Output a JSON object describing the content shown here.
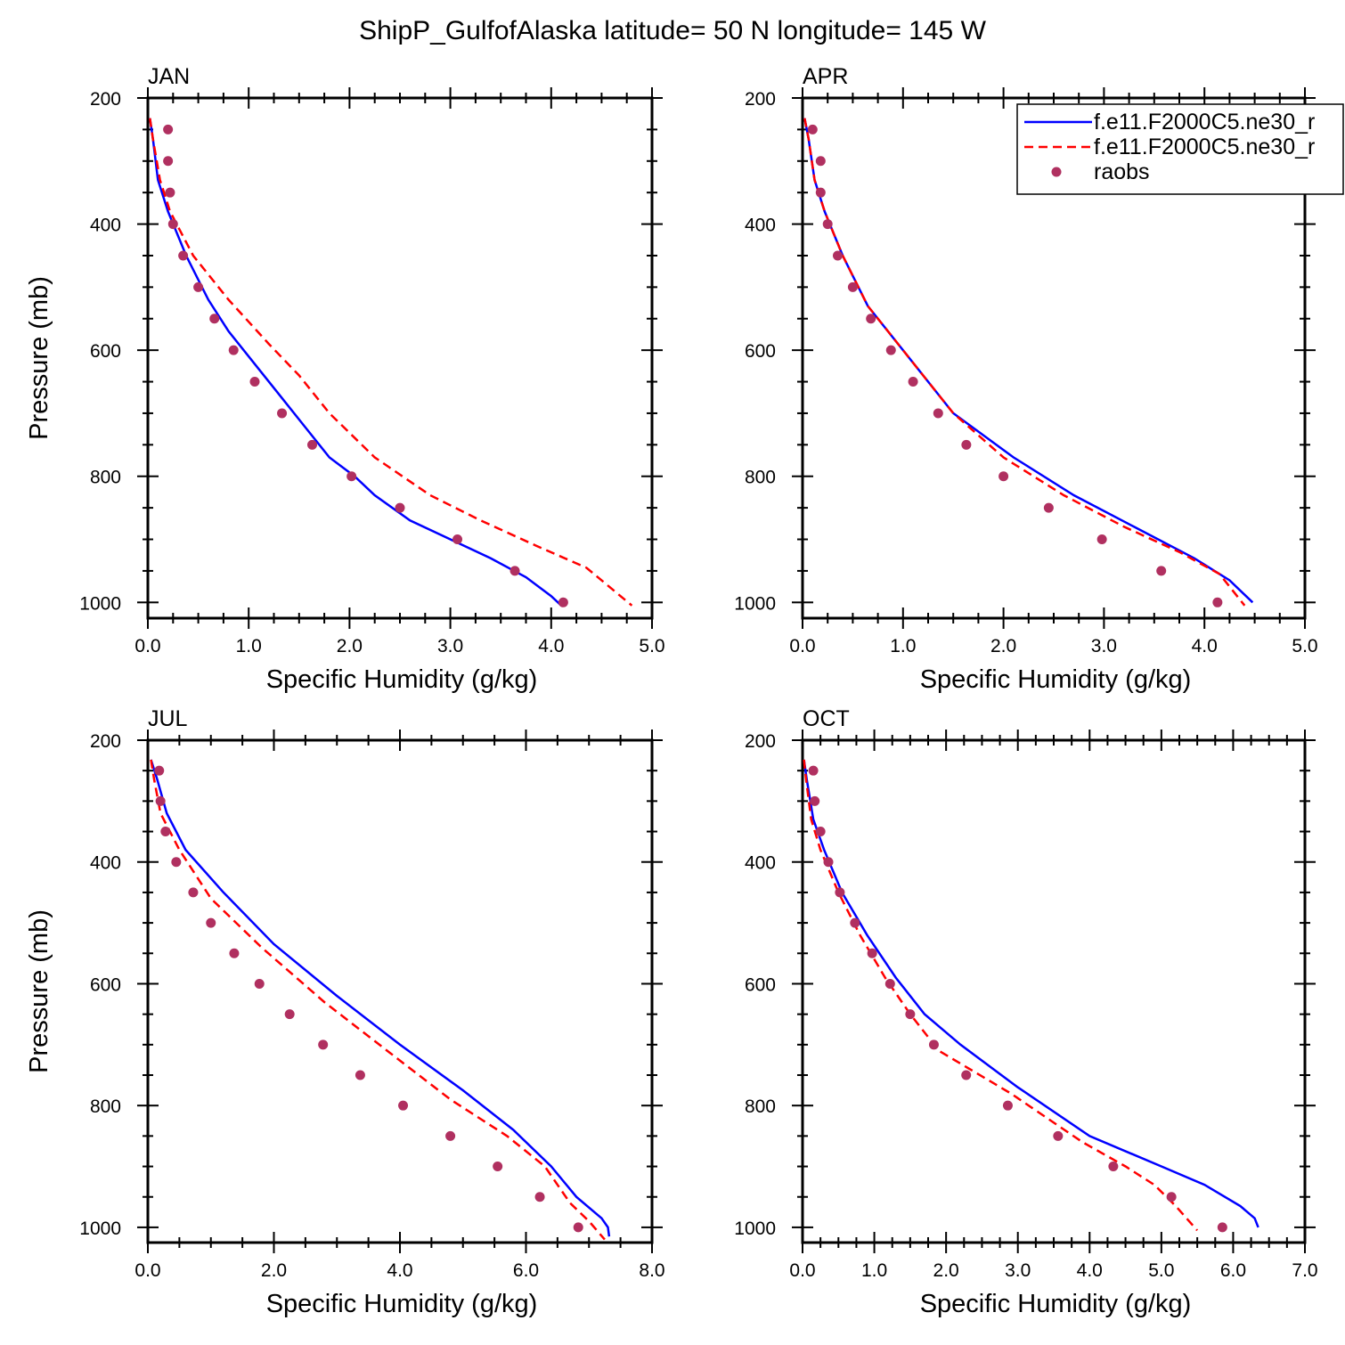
{
  "figure": {
    "title": "ShipP_GulfofAlaska  latitude= 50 N longitude= 145 W"
  },
  "legend": {
    "entries": [
      {
        "label": "f.e11.F2000C5.ne30_r",
        "color": "#0000ff",
        "style": "solid"
      },
      {
        "label": "f.e11.F2000C5.ne30_r",
        "color": "#ff0000",
        "style": "dashed"
      },
      {
        "label": "raobs",
        "color": "#b03060",
        "style": "marker"
      }
    ]
  },
  "chart_data": [
    {
      "type": "line",
      "title": "JAN",
      "xlabel": "Specific Humidity (g/kg)",
      "ylabel": "Pressure (mb)",
      "xlim": [
        0,
        5
      ],
      "ylim": [
        1025,
        200
      ],
      "xticks": [
        "0.0",
        "1.0",
        "2.0",
        "3.0",
        "4.0",
        "5.0"
      ],
      "yticks": [
        "200",
        "400",
        "600",
        "800",
        "1000"
      ],
      "series": [
        {
          "style": "solid",
          "color": "#0000ff",
          "points": [
            [
              0.02,
              232
            ],
            [
              0.05,
              265
            ],
            [
              0.1,
              330
            ],
            [
              0.2,
              380
            ],
            [
              0.38,
              450
            ],
            [
              0.6,
              520
            ],
            [
              0.8,
              570
            ],
            [
              1.05,
              620
            ],
            [
              1.3,
              670
            ],
            [
              1.55,
              720
            ],
            [
              1.8,
              770
            ],
            [
              2.05,
              800
            ],
            [
              2.25,
              830
            ],
            [
              2.6,
              870
            ],
            [
              3.0,
              900
            ],
            [
              3.4,
              930
            ],
            [
              3.75,
              960
            ],
            [
              4.0,
              990
            ],
            [
              4.1,
              1005
            ]
          ]
        },
        {
          "style": "dashed",
          "color": "#ff0000",
          "points": [
            [
              0.02,
              232
            ],
            [
              0.05,
              265
            ],
            [
              0.12,
              330
            ],
            [
              0.22,
              380
            ],
            [
              0.45,
              450
            ],
            [
              0.8,
              520
            ],
            [
              1.2,
              590
            ],
            [
              1.5,
              640
            ],
            [
              1.8,
              700
            ],
            [
              2.25,
              770
            ],
            [
              2.8,
              830
            ],
            [
              3.3,
              870
            ],
            [
              3.85,
              910
            ],
            [
              4.35,
              945
            ],
            [
              4.8,
              1005
            ]
          ]
        },
        {
          "style": "marker",
          "color": "#b03060",
          "points": [
            [
              0.2,
              250
            ],
            [
              0.2,
              300
            ],
            [
              0.22,
              350
            ],
            [
              0.25,
              400
            ],
            [
              0.35,
              450
            ],
            [
              0.5,
              500
            ],
            [
              0.66,
              550
            ],
            [
              0.85,
              600
            ],
            [
              1.06,
              650
            ],
            [
              1.33,
              700
            ],
            [
              1.63,
              750
            ],
            [
              2.02,
              800
            ],
            [
              2.5,
              850
            ],
            [
              3.07,
              900
            ],
            [
              3.64,
              950
            ],
            [
              4.12,
              1000
            ]
          ]
        }
      ]
    },
    {
      "type": "line",
      "title": "APR",
      "xlabel": "Specific Humidity (g/kg)",
      "ylabel": "",
      "xlim": [
        0,
        5
      ],
      "ylim": [
        1025,
        200
      ],
      "xticks": [
        "0.0",
        "1.0",
        "2.0",
        "3.0",
        "4.0",
        "5.0"
      ],
      "yticks": [
        "200",
        "400",
        "600",
        "800",
        "1000"
      ],
      "series": [
        {
          "style": "solid",
          "color": "#0000ff",
          "points": [
            [
              0.02,
              232
            ],
            [
              0.06,
              265
            ],
            [
              0.12,
              330
            ],
            [
              0.22,
              380
            ],
            [
              0.4,
              450
            ],
            [
              0.65,
              530
            ],
            [
              0.95,
              590
            ],
            [
              1.2,
              640
            ],
            [
              1.5,
              700
            ],
            [
              2.1,
              770
            ],
            [
              2.7,
              830
            ],
            [
              3.3,
              880
            ],
            [
              3.9,
              930
            ],
            [
              4.25,
              965
            ],
            [
              4.48,
              1000
            ]
          ]
        },
        {
          "style": "dashed",
          "color": "#ff0000",
          "points": [
            [
              0.02,
              232
            ],
            [
              0.06,
              265
            ],
            [
              0.12,
              330
            ],
            [
              0.22,
              380
            ],
            [
              0.4,
              450
            ],
            [
              0.65,
              530
            ],
            [
              0.95,
              590
            ],
            [
              1.2,
              640
            ],
            [
              1.5,
              700
            ],
            [
              2.0,
              770
            ],
            [
              2.6,
              830
            ],
            [
              3.2,
              880
            ],
            [
              3.75,
              920
            ],
            [
              4.15,
              955
            ],
            [
              4.4,
              1005
            ]
          ]
        },
        {
          "style": "marker",
          "color": "#b03060",
          "points": [
            [
              0.1,
              250
            ],
            [
              0.18,
              300
            ],
            [
              0.18,
              350
            ],
            [
              0.25,
              400
            ],
            [
              0.35,
              450
            ],
            [
              0.5,
              500
            ],
            [
              0.68,
              550
            ],
            [
              0.88,
              600
            ],
            [
              1.1,
              650
            ],
            [
              1.35,
              700
            ],
            [
              1.63,
              750
            ],
            [
              2.0,
              800
            ],
            [
              2.45,
              850
            ],
            [
              2.98,
              900
            ],
            [
              3.57,
              950
            ],
            [
              4.13,
              1000
            ]
          ]
        }
      ]
    },
    {
      "type": "line",
      "title": "JUL",
      "xlabel": "Specific Humidity (g/kg)",
      "ylabel": "Pressure (mb)",
      "xlim": [
        0,
        8
      ],
      "ylim": [
        1025,
        200
      ],
      "xticks": [
        "0.0",
        "2.0",
        "4.0",
        "6.0",
        "8.0"
      ],
      "yticks": [
        "200",
        "400",
        "600",
        "800",
        "1000"
      ],
      "series": [
        {
          "style": "solid",
          "color": "#0000ff",
          "points": [
            [
              0.05,
              232
            ],
            [
              0.15,
              265
            ],
            [
              0.3,
              320
            ],
            [
              0.6,
              380
            ],
            [
              1.2,
              450
            ],
            [
              2.0,
              535
            ],
            [
              3.0,
              620
            ],
            [
              4.0,
              700
            ],
            [
              5.0,
              775
            ],
            [
              5.8,
              840
            ],
            [
              6.4,
              900
            ],
            [
              6.8,
              950
            ],
            [
              7.2,
              985
            ],
            [
              7.3,
              1000
            ],
            [
              7.32,
              1015
            ]
          ]
        },
        {
          "style": "dashed",
          "color": "#ff0000",
          "points": [
            [
              0.05,
              232
            ],
            [
              0.1,
              265
            ],
            [
              0.2,
              320
            ],
            [
              0.5,
              380
            ],
            [
              1.0,
              460
            ],
            [
              1.8,
              540
            ],
            [
              2.8,
              630
            ],
            [
              3.8,
              710
            ],
            [
              4.8,
              790
            ],
            [
              5.7,
              850
            ],
            [
              6.3,
              900
            ],
            [
              6.7,
              960
            ],
            [
              7.0,
              990
            ],
            [
              7.25,
              1020
            ]
          ]
        },
        {
          "style": "marker",
          "color": "#b03060",
          "points": [
            [
              0.18,
              250
            ],
            [
              0.2,
              300
            ],
            [
              0.28,
              350
            ],
            [
              0.45,
              400
            ],
            [
              0.72,
              450
            ],
            [
              1.0,
              500
            ],
            [
              1.37,
              550
            ],
            [
              1.77,
              600
            ],
            [
              2.25,
              650
            ],
            [
              2.78,
              700
            ],
            [
              3.37,
              750
            ],
            [
              4.05,
              800
            ],
            [
              4.8,
              850
            ],
            [
              5.55,
              900
            ],
            [
              6.22,
              950
            ],
            [
              6.83,
              1000
            ]
          ]
        }
      ]
    },
    {
      "type": "line",
      "title": "OCT",
      "xlabel": "Specific Humidity (g/kg)",
      "ylabel": "",
      "xlim": [
        0,
        7
      ],
      "ylim": [
        1025,
        200
      ],
      "xticks": [
        "0.0",
        "1.0",
        "2.0",
        "3.0",
        "4.0",
        "5.0",
        "6.0",
        "7.0"
      ],
      "yticks": [
        "200",
        "400",
        "600",
        "800",
        "1000"
      ],
      "series": [
        {
          "style": "solid",
          "color": "#0000ff",
          "points": [
            [
              0.02,
              232
            ],
            [
              0.06,
              265
            ],
            [
              0.15,
              330
            ],
            [
              0.3,
              380
            ],
            [
              0.55,
              450
            ],
            [
              0.9,
              520
            ],
            [
              1.3,
              590
            ],
            [
              1.7,
              650
            ],
            [
              2.2,
              700
            ],
            [
              3.0,
              770
            ],
            [
              4.0,
              850
            ],
            [
              5.0,
              900
            ],
            [
              5.6,
              930
            ],
            [
              6.1,
              965
            ],
            [
              6.3,
              985
            ],
            [
              6.35,
              1000
            ]
          ]
        },
        {
          "style": "dashed",
          "color": "#ff0000",
          "points": [
            [
              0.02,
              232
            ],
            [
              0.05,
              265
            ],
            [
              0.12,
              330
            ],
            [
              0.25,
              380
            ],
            [
              0.5,
              450
            ],
            [
              0.8,
              520
            ],
            [
              1.15,
              590
            ],
            [
              1.5,
              650
            ],
            [
              1.9,
              710
            ],
            [
              2.9,
              780
            ],
            [
              3.9,
              860
            ],
            [
              4.5,
              900
            ],
            [
              4.9,
              930
            ],
            [
              5.2,
              965
            ],
            [
              5.5,
              1005
            ]
          ]
        },
        {
          "style": "marker",
          "color": "#b03060",
          "points": [
            [
              0.15,
              250
            ],
            [
              0.17,
              300
            ],
            [
              0.25,
              350
            ],
            [
              0.36,
              400
            ],
            [
              0.52,
              450
            ],
            [
              0.73,
              500
            ],
            [
              0.97,
              550
            ],
            [
              1.22,
              600
            ],
            [
              1.5,
              650
            ],
            [
              1.83,
              700
            ],
            [
              2.28,
              750
            ],
            [
              2.86,
              800
            ],
            [
              3.56,
              850
            ],
            [
              4.33,
              900
            ],
            [
              5.14,
              950
            ],
            [
              5.85,
              1000
            ]
          ]
        }
      ]
    }
  ]
}
